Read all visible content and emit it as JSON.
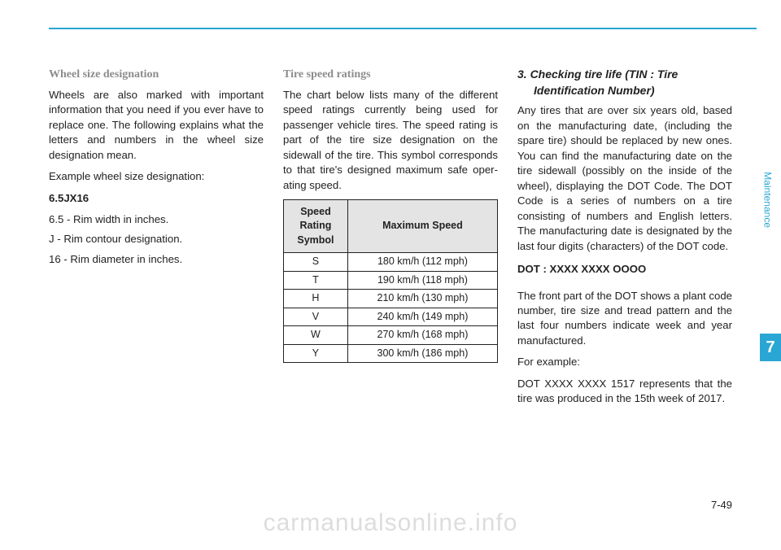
{
  "rule_color": "#29a6d3",
  "col1": {
    "heading": "Wheel size designation",
    "p1": "Wheels are also marked with impor­tant information that you need if you ever have to replace one. The follow­ing explains what the letters and numbers in the wheel size designa­tion mean.",
    "p2": "Example wheel size designation:",
    "code": "6.5JX16",
    "l1": "6.5 - Rim width in inches.",
    "l2": "J - Rim contour designation.",
    "l3": "16 - Rim diameter in inches."
  },
  "col2": {
    "heading": "Tire speed ratings",
    "p1": "The chart below lists many of the dif­ferent speed ratings currently being used for passenger vehicle tires. The speed rating is part of the tire size designation on the sidewall of the tire. This symbol corresponds to that tire's designed maximum safe oper­ating speed.",
    "table": {
      "header1": "Speed Rating Symbol",
      "header2": "Maximum Speed",
      "header_bg": "#e4e4e4",
      "border_color": "#222222",
      "rows": [
        {
          "sym": "S",
          "speed": "180 km/h (112 mph)"
        },
        {
          "sym": "T",
          "speed": "190 km/h (118 mph)"
        },
        {
          "sym": "H",
          "speed": "210 km/h (130 mph)"
        },
        {
          "sym": "V",
          "speed": "240 km/h (149 mph)"
        },
        {
          "sym": "W",
          "speed": "270 km/h (168 mph)"
        },
        {
          "sym": "Y",
          "speed": "300 km/h (186 mph)"
        }
      ]
    }
  },
  "col3": {
    "heading_a": "3. Checking tire life (TIN : Tire",
    "heading_b": "Identification Number)",
    "p1": "Any tires that are over six years old, based on the manufacturing date, (including the spare tire) should be replaced by new ones. You can find the manufacturing date on the tire sidewall (possibly on the inside of the wheel), displaying the DOT Code. The DOT Code is a series of num­bers on a tire consisting of numbers and English letters. The manufactur­ing date is designated by the last four digits (characters) of the DOT code.",
    "dot": "DOT : XXXX XXXX OOOO",
    "p2": "The front part of the DOT shows a plant code number, tire size and tread pattern and the last four num­bers indicate week and year manu­factured.",
    "p3": "For example:",
    "p4": "DOT XXXX XXXX 1517 represents that the tire was produced in the 15th week of 2017."
  },
  "side": {
    "label": "Maintenance",
    "num": "7"
  },
  "pagenum": "7-49",
  "watermark": "carmanualsonline.info"
}
